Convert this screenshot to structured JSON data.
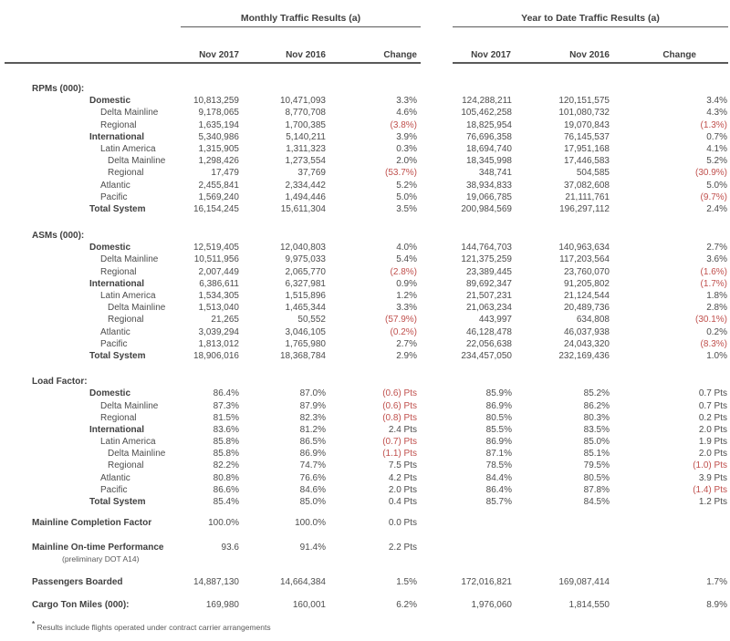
{
  "report": {
    "monthly_title": "Monthly Traffic Results (a)",
    "ytd_title": "Year to Date Traffic Results (a)",
    "columns": [
      "Nov 2017",
      "Nov 2016",
      "Change"
    ],
    "colors": {
      "text": "#4d4d4d",
      "negative": "#c0504d",
      "rule": "#5a5a5a"
    },
    "sections": [
      {
        "title": "RPMs (000):",
        "rows": [
          {
            "label": "Domestic",
            "bold": true,
            "indent": 1,
            "monthly": [
              "10,813,259",
              "10,471,093",
              "3.3%"
            ],
            "ytd": [
              "124,288,211",
              "120,151,575",
              "3.4%"
            ]
          },
          {
            "label": "Delta Mainline",
            "bold": false,
            "indent": 2,
            "monthly": [
              "9,178,065",
              "8,770,708",
              "4.6%"
            ],
            "ytd": [
              "105,462,258",
              "101,080,732",
              "4.3%"
            ]
          },
          {
            "label": "Regional",
            "bold": false,
            "indent": 2,
            "monthly": [
              "1,635,194",
              "1,700,385",
              "(3.8%)"
            ],
            "ytd": [
              "18,825,954",
              "19,070,843",
              "(1.3%)"
            ]
          },
          {
            "label": "International",
            "bold": true,
            "indent": 1,
            "monthly": [
              "5,340,986",
              "5,140,211",
              "3.9%"
            ],
            "ytd": [
              "76,696,358",
              "76,145,537",
              "0.7%"
            ]
          },
          {
            "label": "Latin America",
            "bold": false,
            "indent": 2,
            "monthly": [
              "1,315,905",
              "1,311,323",
              "0.3%"
            ],
            "ytd": [
              "18,694,740",
              "17,951,168",
              "4.1%"
            ]
          },
          {
            "label": "Delta Mainline",
            "bold": false,
            "indent": 3,
            "monthly": [
              "1,298,426",
              "1,273,554",
              "2.0%"
            ],
            "ytd": [
              "18,345,998",
              "17,446,583",
              "5.2%"
            ]
          },
          {
            "label": "Regional",
            "bold": false,
            "indent": 3,
            "monthly": [
              "17,479",
              "37,769",
              "(53.7%)"
            ],
            "ytd": [
              "348,741",
              "504,585",
              "(30.9%)"
            ]
          },
          {
            "label": "Atlantic",
            "bold": false,
            "indent": 2,
            "monthly": [
              "2,455,841",
              "2,334,442",
              "5.2%"
            ],
            "ytd": [
              "38,934,833",
              "37,082,608",
              "5.0%"
            ]
          },
          {
            "label": "Pacific",
            "bold": false,
            "indent": 2,
            "monthly": [
              "1,569,240",
              "1,494,446",
              "5.0%"
            ],
            "ytd": [
              "19,066,785",
              "21,111,761",
              "(9.7%)"
            ]
          },
          {
            "label": "Total System",
            "bold": true,
            "indent": 1,
            "monthly": [
              "16,154,245",
              "15,611,304",
              "3.5%"
            ],
            "ytd": [
              "200,984,569",
              "196,297,112",
              "2.4%"
            ]
          }
        ]
      },
      {
        "title": "ASMs (000):",
        "rows": [
          {
            "label": "Domestic",
            "bold": true,
            "indent": 1,
            "monthly": [
              "12,519,405",
              "12,040,803",
              "4.0%"
            ],
            "ytd": [
              "144,764,703",
              "140,963,634",
              "2.7%"
            ]
          },
          {
            "label": "Delta Mainline",
            "bold": false,
            "indent": 2,
            "monthly": [
              "10,511,956",
              "9,975,033",
              "5.4%"
            ],
            "ytd": [
              "121,375,259",
              "117,203,564",
              "3.6%"
            ]
          },
          {
            "label": "Regional",
            "bold": false,
            "indent": 2,
            "monthly": [
              "2,007,449",
              "2,065,770",
              "(2.8%)"
            ],
            "ytd": [
              "23,389,445",
              "23,760,070",
              "(1.6%)"
            ]
          },
          {
            "label": "International",
            "bold": true,
            "indent": 1,
            "monthly": [
              "6,386,611",
              "6,327,981",
              "0.9%"
            ],
            "ytd": [
              "89,692,347",
              "91,205,802",
              "(1.7%)"
            ]
          },
          {
            "label": "Latin America",
            "bold": false,
            "indent": 2,
            "monthly": [
              "1,534,305",
              "1,515,896",
              "1.2%"
            ],
            "ytd": [
              "21,507,231",
              "21,124,544",
              "1.8%"
            ]
          },
          {
            "label": "Delta Mainline",
            "bold": false,
            "indent": 3,
            "monthly": [
              "1,513,040",
              "1,465,344",
              "3.3%"
            ],
            "ytd": [
              "21,063,234",
              "20,489,736",
              "2.8%"
            ]
          },
          {
            "label": "Regional",
            "bold": false,
            "indent": 3,
            "monthly": [
              "21,265",
              "50,552",
              "(57.9%)"
            ],
            "ytd": [
              "443,997",
              "634,808",
              "(30.1%)"
            ]
          },
          {
            "label": "Atlantic",
            "bold": false,
            "indent": 2,
            "monthly": [
              "3,039,294",
              "3,046,105",
              "(0.2%)"
            ],
            "ytd": [
              "46,128,478",
              "46,037,938",
              "0.2%"
            ]
          },
          {
            "label": "Pacific",
            "bold": false,
            "indent": 2,
            "monthly": [
              "1,813,012",
              "1,765,980",
              "2.7%"
            ],
            "ytd": [
              "22,056,638",
              "24,043,320",
              "(8.3%)"
            ]
          },
          {
            "label": "Total System",
            "bold": true,
            "indent": 1,
            "monthly": [
              "18,906,016",
              "18,368,784",
              "2.9%"
            ],
            "ytd": [
              "234,457,050",
              "232,169,436",
              "1.0%"
            ]
          }
        ]
      },
      {
        "title": "Load Factor:",
        "rows": [
          {
            "label": "Domestic",
            "bold": true,
            "indent": 1,
            "monthly": [
              "86.4%",
              "87.0%",
              "(0.6) Pts"
            ],
            "ytd": [
              "85.9%",
              "85.2%",
              "0.7 Pts"
            ]
          },
          {
            "label": "Delta Mainline",
            "bold": false,
            "indent": 2,
            "monthly": [
              "87.3%",
              "87.9%",
              "(0.6) Pts"
            ],
            "ytd": [
              "86.9%",
              "86.2%",
              "0.7 Pts"
            ]
          },
          {
            "label": "Regional",
            "bold": false,
            "indent": 2,
            "monthly": [
              "81.5%",
              "82.3%",
              "(0.8) Pts"
            ],
            "ytd": [
              "80.5%",
              "80.3%",
              "0.2 Pts"
            ]
          },
          {
            "label": "International",
            "bold": true,
            "indent": 1,
            "monthly": [
              "83.6%",
              "81.2%",
              "2.4 Pts"
            ],
            "ytd": [
              "85.5%",
              "83.5%",
              "2.0 Pts"
            ]
          },
          {
            "label": "Latin America",
            "bold": false,
            "indent": 2,
            "monthly": [
              "85.8%",
              "86.5%",
              "(0.7) Pts"
            ],
            "ytd": [
              "86.9%",
              "85.0%",
              "1.9 Pts"
            ]
          },
          {
            "label": "Delta Mainline",
            "bold": false,
            "indent": 3,
            "monthly": [
              "85.8%",
              "86.9%",
              "(1.1) Pts"
            ],
            "ytd": [
              "87.1%",
              "85.1%",
              "2.0 Pts"
            ]
          },
          {
            "label": "Regional",
            "bold": false,
            "indent": 3,
            "monthly": [
              "82.2%",
              "74.7%",
              "7.5 Pts"
            ],
            "ytd": [
              "78.5%",
              "79.5%",
              "(1.0) Pts"
            ]
          },
          {
            "label": "Atlantic",
            "bold": false,
            "indent": 2,
            "monthly": [
              "80.8%",
              "76.6%",
              "4.2 Pts"
            ],
            "ytd": [
              "84.4%",
              "80.5%",
              "3.9 Pts"
            ]
          },
          {
            "label": "Pacific",
            "bold": false,
            "indent": 2,
            "monthly": [
              "86.6%",
              "84.6%",
              "2.0 Pts"
            ],
            "ytd": [
              "86.4%",
              "87.8%",
              "(1.4) Pts"
            ]
          },
          {
            "label": "Total System",
            "bold": true,
            "indent": 1,
            "monthly": [
              "85.4%",
              "85.0%",
              "0.4 Pts"
            ],
            "ytd": [
              "85.7%",
              "84.5%",
              "1.2 Pts"
            ]
          }
        ]
      }
    ],
    "single_rows": [
      {
        "label": "Mainline Completion Factor",
        "sublabel": "",
        "gap": "single-gap",
        "monthly": [
          "100.0%",
          "100.0%",
          "0.0 Pts"
        ],
        "ytd": [
          "",
          "",
          ""
        ]
      },
      {
        "label": "Mainline On-time Performance",
        "sublabel": "(preliminary DOT A14)",
        "gap": "gap14",
        "monthly": [
          "93.6",
          "91.4%",
          "2.2 Pts"
        ],
        "ytd": [
          "",
          "",
          ""
        ]
      },
      {
        "label": "Passengers Boarded",
        "sublabel": "",
        "gap": "gap11",
        "monthly": [
          "14,887,130",
          "14,664,384",
          "1.5%"
        ],
        "ytd": [
          "172,016,821",
          "169,087,414",
          "1.7%"
        ]
      },
      {
        "label": "Cargo Ton Miles (000):",
        "sublabel": "",
        "gap": "gap12",
        "monthly": [
          "169,980",
          "160,001",
          "6.2%"
        ],
        "ytd": [
          "1,976,060",
          "1,814,550",
          "8.9%"
        ]
      }
    ],
    "footnote_marker": "*",
    "footnote_text": "Results include flights operated under contract carrier arrangements"
  }
}
